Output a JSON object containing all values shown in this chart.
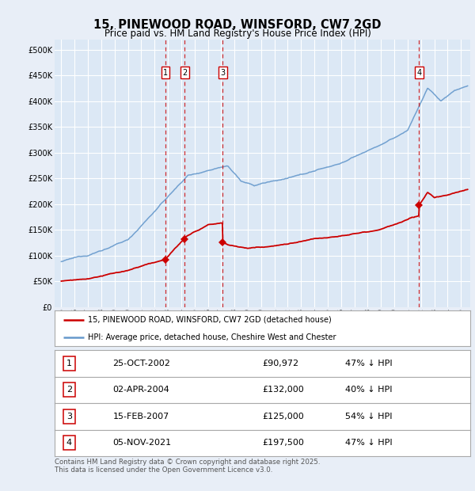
{
  "title": "15, PINEWOOD ROAD, WINSFORD, CW7 2GD",
  "subtitle": "Price paid vs. HM Land Registry's House Price Index (HPI)",
  "legend_label_red": "15, PINEWOOD ROAD, WINSFORD, CW7 2GD (detached house)",
  "legend_label_blue": "HPI: Average price, detached house, Cheshire West and Chester",
  "footer": "Contains HM Land Registry data © Crown copyright and database right 2025.\nThis data is licensed under the Open Government Licence v3.0.",
  "transactions": [
    {
      "num": 1,
      "date": "25-OCT-2002",
      "date_x": 2002.82,
      "price": 90972,
      "label": "£90,972",
      "pct": "47% ↓ HPI"
    },
    {
      "num": 2,
      "date": "02-APR-2004",
      "date_x": 2004.25,
      "price": 132000,
      "label": "£132,000",
      "pct": "40% ↓ HPI"
    },
    {
      "num": 3,
      "date": "15-FEB-2007",
      "date_x": 2007.12,
      "price": 125000,
      "label": "£125,000",
      "pct": "54% ↓ HPI"
    },
    {
      "num": 4,
      "date": "05-NOV-2021",
      "date_x": 2021.85,
      "price": 197500,
      "label": "£197,500",
      "pct": "47% ↓ HPI"
    }
  ],
  "ylim": [
    0,
    520000
  ],
  "yticks": [
    0,
    50000,
    100000,
    150000,
    200000,
    250000,
    300000,
    350000,
    400000,
    450000,
    500000
  ],
  "xlim_start": 1994.5,
  "xlim_end": 2025.7,
  "bg_color": "#e8eef7",
  "plot_bg_color": "#dce8f5",
  "grid_color": "#ffffff",
  "red_color": "#cc0000",
  "blue_color": "#6699cc",
  "title_fontsize": 10.5,
  "subtitle_fontsize": 8.5
}
